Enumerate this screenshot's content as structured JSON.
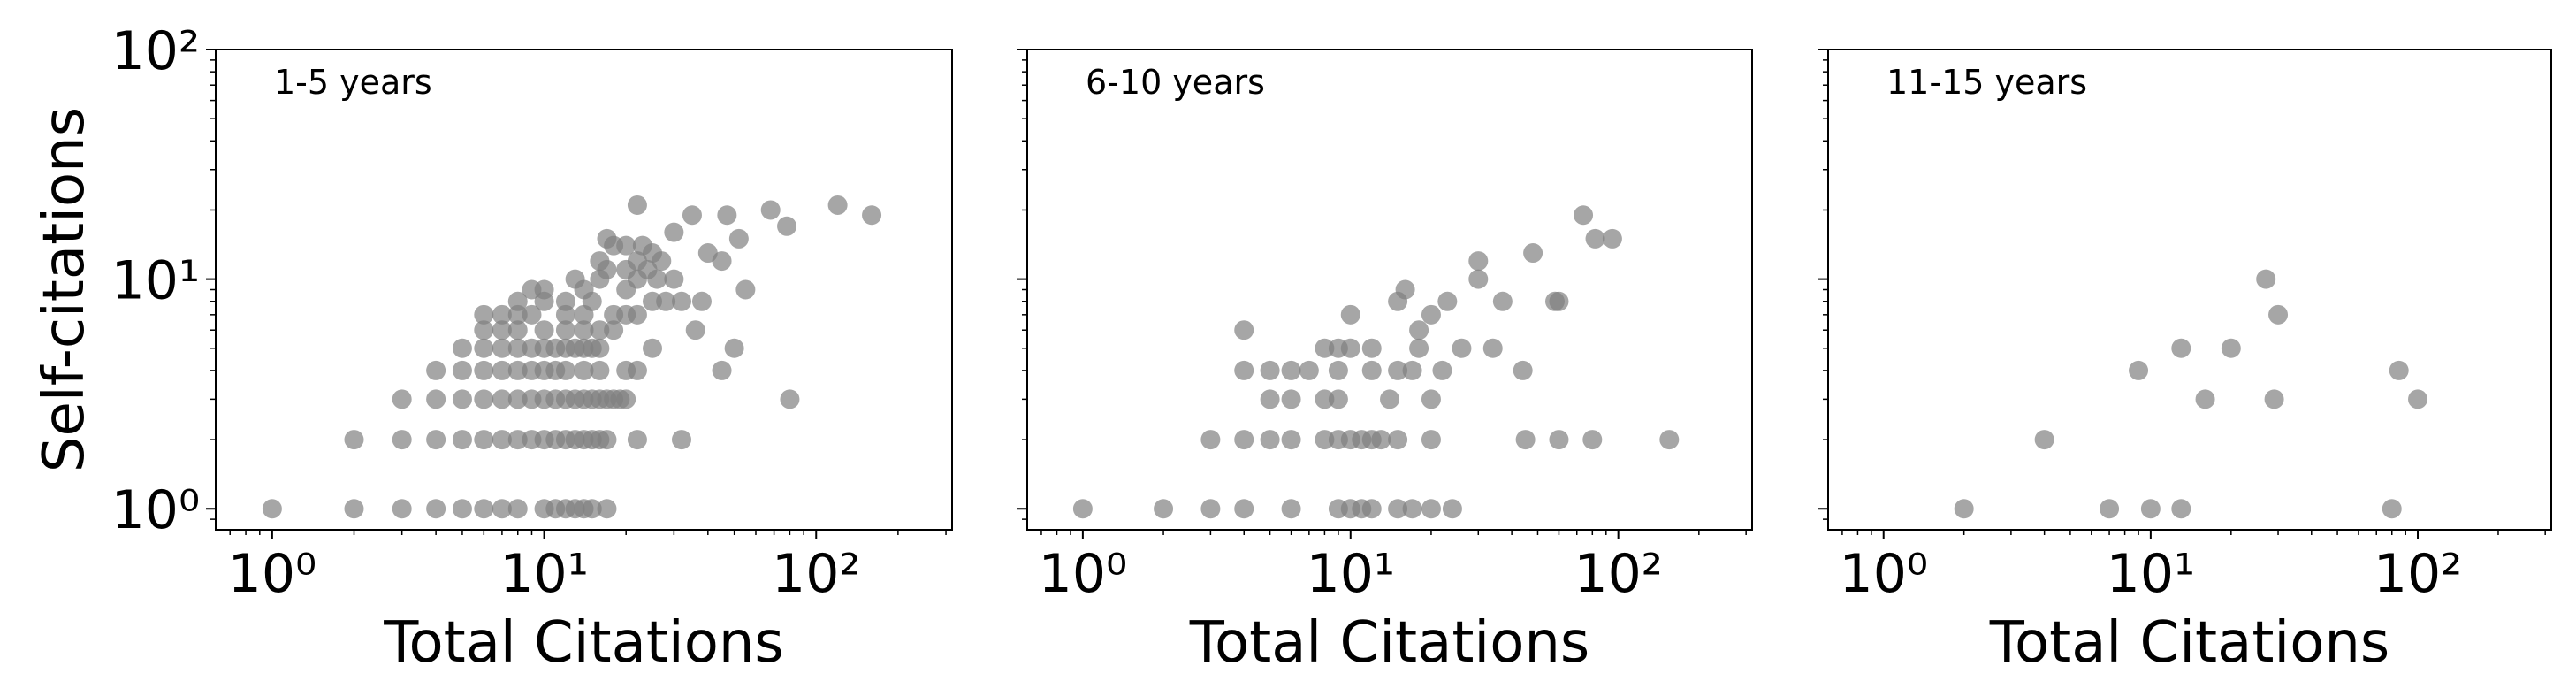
{
  "chart_data": [
    {
      "type": "scatter",
      "annotation": "1-5 years",
      "xlabel": "Total Citations",
      "ylabel": "Self-citations",
      "xscale": "log",
      "yscale": "log",
      "color": "#808080",
      "xlim": [
        0.62,
        316
      ],
      "ylim": [
        0.81,
        100
      ],
      "xticks": [
        {
          "value": 1,
          "label": "10⁰"
        },
        {
          "value": 10,
          "label": "10¹"
        },
        {
          "value": 100,
          "label": "10²"
        }
      ],
      "yticks": [
        {
          "value": 1,
          "label": "10⁰"
        },
        {
          "value": 10,
          "label": "10¹"
        },
        {
          "value": 100,
          "label": "10²"
        }
      ],
      "x": [
        1,
        2,
        3,
        4,
        5,
        6,
        7,
        8,
        10,
        11,
        12,
        13,
        14,
        15,
        17,
        2,
        3,
        4,
        5,
        6,
        7,
        8,
        9,
        10,
        11,
        12,
        13,
        14,
        15,
        16,
        17,
        22,
        32,
        3,
        4,
        5,
        6,
        7,
        8,
        9,
        10,
        11,
        12,
        13,
        14,
        15,
        16,
        17,
        18,
        19,
        20,
        80,
        4,
        5,
        6,
        7,
        8,
        9,
        10,
        11,
        12,
        14,
        16,
        20,
        22,
        45,
        5,
        6,
        7,
        8,
        9,
        10,
        11,
        12,
        13,
        14,
        15,
        16,
        25,
        50,
        6,
        7,
        8,
        10,
        12,
        14,
        16,
        18,
        36,
        6,
        7,
        8,
        9,
        12,
        14,
        18,
        20,
        22,
        8,
        10,
        12,
        15,
        25,
        28,
        32,
        38,
        9,
        10,
        14,
        20,
        55,
        13,
        16,
        22,
        26,
        30,
        17,
        20,
        24,
        16,
        22,
        27,
        45,
        25,
        40,
        18,
        20,
        23,
        17,
        52,
        30,
        35,
        47,
        68,
        120,
        22,
        160,
        78
      ],
      "values": [
        1,
        1,
        1,
        1,
        1,
        1,
        1,
        1,
        1,
        1,
        1,
        1,
        1,
        1,
        1,
        2,
        2,
        2,
        2,
        2,
        2,
        2,
        2,
        2,
        2,
        2,
        2,
        2,
        2,
        2,
        2,
        2,
        2,
        3,
        3,
        3,
        3,
        3,
        3,
        3,
        3,
        3,
        3,
        3,
        3,
        3,
        3,
        3,
        3,
        3,
        3,
        3,
        4,
        4,
        4,
        4,
        4,
        4,
        4,
        4,
        4,
        4,
        4,
        4,
        4,
        4,
        5,
        5,
        5,
        5,
        5,
        5,
        5,
        5,
        5,
        5,
        5,
        5,
        5,
        5,
        6,
        6,
        6,
        6,
        6,
        6,
        6,
        6,
        6,
        7,
        7,
        7,
        7,
        7,
        7,
        7,
        7,
        7,
        8,
        8,
        8,
        8,
        8,
        8,
        8,
        8,
        9,
        9,
        9,
        9,
        9,
        10,
        10,
        10,
        10,
        10,
        11,
        11,
        11,
        12,
        12,
        12,
        12,
        13,
        13,
        14,
        14,
        14,
        15,
        15,
        16,
        19,
        19,
        20,
        21,
        21,
        19,
        17
      ]
    },
    {
      "type": "scatter",
      "annotation": "6-10 years",
      "xlabel": "Total Citations",
      "xscale": "log",
      "yscale": "log",
      "color": "#808080",
      "xlim": [
        0.62,
        316
      ],
      "ylim": [
        0.81,
        100
      ],
      "xticks": [
        {
          "value": 1,
          "label": "10⁰"
        },
        {
          "value": 10,
          "label": "10¹"
        },
        {
          "value": 100,
          "label": "10²"
        }
      ],
      "yticks": [
        1,
        10,
        100
      ],
      "x": [
        1,
        2,
        3,
        4,
        6,
        9,
        10,
        11,
        12,
        15,
        17,
        20,
        24,
        3,
        4,
        5,
        6,
        8,
        9,
        10,
        11,
        12,
        13,
        15,
        20,
        45,
        60,
        80,
        155,
        5,
        6,
        8,
        9,
        14,
        20,
        4,
        5,
        6,
        7,
        9,
        12,
        15,
        17,
        22,
        44,
        8,
        9,
        10,
        12,
        18,
        26,
        34,
        4,
        18,
        10,
        20,
        15,
        23,
        37,
        58,
        60,
        16,
        30,
        30,
        48,
        82,
        95,
        74
      ],
      "values": [
        1,
        1,
        1,
        1,
        1,
        1,
        1,
        1,
        1,
        1,
        1,
        1,
        1,
        2,
        2,
        2,
        2,
        2,
        2,
        2,
        2,
        2,
        2,
        2,
        2,
        2,
        2,
        2,
        2,
        3,
        3,
        3,
        3,
        3,
        3,
        4,
        4,
        4,
        4,
        4,
        4,
        4,
        4,
        4,
        4,
        5,
        5,
        5,
        5,
        5,
        5,
        5,
        6,
        6,
        7,
        7,
        8,
        8,
        8,
        8,
        8,
        9,
        10,
        12,
        13,
        15,
        15,
        19
      ]
    },
    {
      "type": "scatter",
      "annotation": "11-15 years",
      "xlabel": "Total Citations",
      "xscale": "log",
      "yscale": "log",
      "color": "#808080",
      "xlim": [
        0.62,
        316
      ],
      "ylim": [
        0.81,
        100
      ],
      "xticks": [
        {
          "value": 1,
          "label": "10⁰"
        },
        {
          "value": 10,
          "label": "10¹"
        },
        {
          "value": 100,
          "label": "10²"
        }
      ],
      "yticks": [
        1,
        10,
        100
      ],
      "x": [
        2,
        7,
        10,
        13,
        80,
        4,
        16,
        29,
        100,
        9,
        85,
        13,
        20,
        30,
        27
      ],
      "values": [
        1,
        1,
        1,
        1,
        1,
        2,
        3,
        3,
        3,
        4,
        4,
        5,
        5,
        7,
        10
      ]
    }
  ]
}
